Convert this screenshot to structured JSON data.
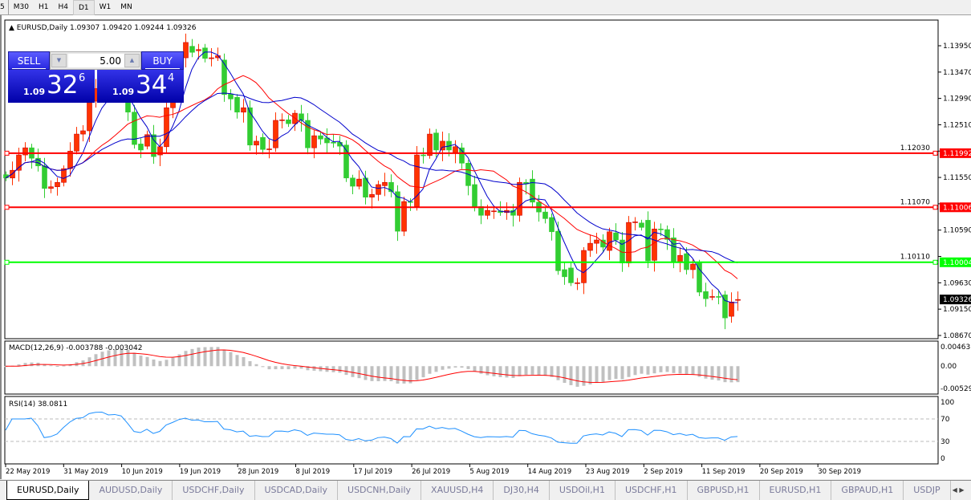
{
  "toolbar": {
    "timeframes": [
      "5",
      "M30",
      "H1",
      "H4",
      "D1",
      "W1",
      "MN"
    ],
    "active": "D1"
  },
  "chart": {
    "header": "EURUSD,Daily  1.09307 1.09420 1.09244 1.09326",
    "symbol": "EURUSD",
    "timeframe": "Daily",
    "ohlc_readout": {
      "open": "1.09307",
      "high": "1.09420",
      "low": "1.09244",
      "close": "1.09326"
    },
    "price_ticks": [
      "1.13950",
      "1.13470",
      "1.12990",
      "1.12510",
      "1.12030",
      "1.11550",
      "1.11070",
      "1.10590",
      "1.10110",
      "1.09630",
      "1.09150",
      "1.08670"
    ],
    "price_range": [
      1.0867,
      1.1395
    ],
    "current_price": "1.09326",
    "hlines": [
      {
        "price": "1.11992",
        "color": "#ff0000"
      },
      {
        "price": "1.11006",
        "color": "#ff0000"
      },
      {
        "price": "1.10004",
        "color": "#00ff00"
      }
    ],
    "colors": {
      "bull": "#ff3300",
      "bear": "#32cd32",
      "ma_fast": "#0000cc",
      "ma_mid": "#ff0000",
      "ma_slow": "#0000cc"
    },
    "date_labels": [
      "22 May 2019",
      "31 May 2019",
      "10 Jun 2019",
      "19 Jun 2019",
      "28 Jun 2019",
      "8 Jul 2019",
      "17 Jul 2019",
      "26 Jul 2019",
      "5 Aug 2019",
      "14 Aug 2019",
      "23 Aug 2019",
      "2 Sep 2019",
      "11 Sep 2019",
      "20 Sep 2019",
      "30 Sep 2019"
    ],
    "candles_oc": [
      [
        1.116,
        1.1154
      ],
      [
        1.1154,
        1.1168
      ],
      [
        1.1168,
        1.1196
      ],
      [
        1.1196,
        1.1209
      ],
      [
        1.1209,
        1.119
      ],
      [
        1.119,
        1.1176
      ],
      [
        1.1176,
        1.1135
      ],
      [
        1.1135,
        1.1138
      ],
      [
        1.1138,
        1.1146
      ],
      [
        1.1146,
        1.1171
      ],
      [
        1.1171,
        1.1203
      ],
      [
        1.1203,
        1.1234
      ],
      [
        1.1234,
        1.124
      ],
      [
        1.124,
        1.1294
      ],
      [
        1.1294,
        1.1317
      ],
      [
        1.1317,
        1.1322
      ],
      [
        1.1322,
        1.131
      ],
      [
        1.131,
        1.1316
      ],
      [
        1.1316,
        1.131
      ],
      [
        1.131,
        1.1274
      ],
      [
        1.1274,
        1.1215
      ],
      [
        1.1216,
        1.1205
      ],
      [
        1.1212,
        1.1233
      ],
      [
        1.1233,
        1.1193
      ],
      [
        1.1196,
        1.1211
      ],
      [
        1.1211,
        1.1282
      ],
      [
        1.1282,
        1.132
      ],
      [
        1.132,
        1.1373
      ],
      [
        1.1373,
        1.1401
      ],
      [
        1.1394,
        1.1383
      ],
      [
        1.1386,
        1.1388
      ],
      [
        1.1391,
        1.1372
      ],
      [
        1.1372,
        1.1373
      ],
      [
        1.1373,
        1.1377
      ],
      [
        1.1369,
        1.1306
      ],
      [
        1.1307,
        1.1298
      ],
      [
        1.1301,
        1.1274
      ],
      [
        1.1274,
        1.1282
      ],
      [
        1.1282,
        1.1214
      ],
      [
        1.1214,
        1.1221
      ],
      [
        1.1228,
        1.1206
      ],
      [
        1.1206,
        1.1207
      ],
      [
        1.1209,
        1.1259
      ],
      [
        1.1259,
        1.126
      ],
      [
        1.126,
        1.1253
      ],
      [
        1.1253,
        1.1272
      ],
      [
        1.1271,
        1.1259
      ],
      [
        1.1259,
        1.1209
      ],
      [
        1.1209,
        1.1231
      ],
      [
        1.1231,
        1.1225
      ],
      [
        1.1227,
        1.1218
      ],
      [
        1.1219,
        1.1218
      ],
      [
        1.1219,
        1.1212
      ],
      [
        1.1214,
        1.1154
      ],
      [
        1.1154,
        1.1139
      ],
      [
        1.1139,
        1.1152
      ],
      [
        1.1154,
        1.1119
      ],
      [
        1.1119,
        1.1124
      ],
      [
        1.1124,
        1.1142
      ],
      [
        1.114,
        1.1146
      ],
      [
        1.1146,
        1.1129
      ],
      [
        1.1129,
        1.1057
      ],
      [
        1.1057,
        1.1111
      ],
      [
        1.1111,
        1.111
      ],
      [
        1.1102,
        1.1196
      ],
      [
        1.1196,
        1.1195
      ],
      [
        1.1195,
        1.1234
      ],
      [
        1.1236,
        1.1205
      ],
      [
        1.1205,
        1.1221
      ],
      [
        1.1221,
        1.1205
      ],
      [
        1.12,
        1.1211
      ],
      [
        1.1209,
        1.1181
      ],
      [
        1.1181,
        1.114
      ],
      [
        1.1142,
        1.1102
      ],
      [
        1.1102,
        1.1086
      ],
      [
        1.1086,
        1.1095
      ],
      [
        1.1094,
        1.1094
      ],
      [
        1.1094,
        1.1091
      ],
      [
        1.1091,
        1.1095
      ],
      [
        1.1095,
        1.1086
      ],
      [
        1.1086,
        1.1146
      ],
      [
        1.1146,
        1.1143
      ],
      [
        1.1152,
        1.111
      ],
      [
        1.111,
        1.1092
      ],
      [
        1.1092,
        1.108
      ],
      [
        1.1082,
        1.1056
      ],
      [
        1.1057,
        1.0985
      ],
      [
        1.0987,
        1.0974
      ],
      [
        1.099,
        1.0963
      ],
      [
        1.0963,
        1.0963
      ],
      [
        1.0963,
        1.1022
      ],
      [
        1.1022,
        1.1035
      ],
      [
        1.1035,
        1.1041
      ],
      [
        1.1041,
        1.1028
      ],
      [
        1.1022,
        1.1056
      ],
      [
        1.1054,
        1.1041
      ],
      [
        1.1041,
        1.0999
      ],
      [
        1.0999,
        1.1073
      ],
      [
        1.1073,
        1.1074
      ],
      [
        1.1072,
        1.1064
      ],
      [
        1.1077,
        1.1003
      ],
      [
        1.1004,
        1.1061
      ],
      [
        1.1061,
        1.106
      ],
      [
        1.106,
        1.1042
      ],
      [
        1.1045,
        1.1
      ],
      [
        1.1,
        1.1013
      ],
      [
        1.1016,
        1.0987
      ],
      [
        1.0987,
        1.0997
      ],
      [
        1.0999,
        1.0946
      ],
      [
        1.0947,
        1.0934
      ],
      [
        1.0937,
        1.0938
      ],
      [
        1.0938,
        1.0937
      ],
      [
        1.0941,
        1.0899
      ],
      [
        1.0902,
        1.0928
      ],
      [
        1.0931,
        1.09326
      ]
    ]
  },
  "macd": {
    "label": "MACD(12,26,9) -0.003788 -0.003042",
    "ticks": [
      "0.00463",
      "0.00",
      "-0.005299"
    ],
    "range": [
      -0.005299,
      0.00463
    ],
    "hist_color": "#c0c0c0",
    "signal_color": "#ff0000"
  },
  "rsi": {
    "label": "RSI(14) 38.0811",
    "ticks": [
      "100",
      "70",
      "30",
      "0"
    ],
    "levels": [
      70,
      30
    ],
    "line_color": "#1e90ff"
  },
  "trade": {
    "sell_label": "SELL",
    "buy_label": "BUY",
    "lot": "5.00",
    "sell_big": "1.09",
    "sell_main": "32",
    "sell_sup": "6",
    "buy_big": "1.09",
    "buy_main": "34",
    "buy_sup": "4"
  },
  "tabs": [
    "EURUSD,Daily",
    "AUDUSD,Daily",
    "USDCHF,Daily",
    "USDCAD,Daily",
    "USDCNH,Daily",
    "XAUUSD,H4",
    "DJ30,H4",
    "USDOil,H1",
    "USDCHF,H1",
    "GBPUSD,H1",
    "EURUSD,H1",
    "GBPAUD,H1",
    "USDJP"
  ]
}
